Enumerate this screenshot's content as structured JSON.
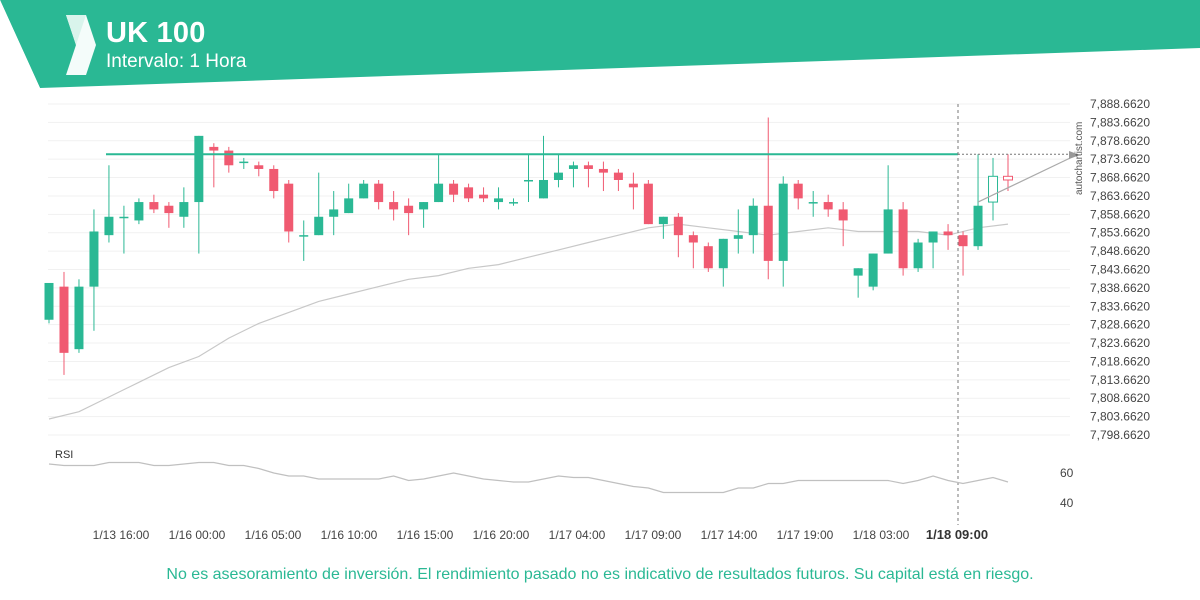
{
  "header": {
    "instrument": "UK 100",
    "interval": "Intervalo: 1 Hora"
  },
  "watermark": "autochartist.com",
  "footer": {
    "disclaimer": "No es asesoramiento de inversión. El rendimiento pasado no es indicativo de resultados futuros. Su capital está en riesgo."
  },
  "colors": {
    "brand": "#2ab894",
    "bullish": "#2ab894",
    "bearish": "#f05a71",
    "ma_line": "#c8c8c8",
    "resistance": "#2ab894"
  },
  "chart_data": {
    "type": "candlestick",
    "price_ticks": [
      "7,888.6620",
      "7,883.6620",
      "7,878.6620",
      "7,873.6620",
      "7,868.6620",
      "7,863.6620",
      "7,858.6620",
      "7,853.6620",
      "7,848.6620",
      "7,843.6620",
      "7,838.6620",
      "7,833.6620",
      "7,828.6620",
      "7,823.6620",
      "7,818.6620",
      "7,813.6620",
      "7,808.6620",
      "7,803.6620",
      "7,798.6620"
    ],
    "ylim": [
      7797,
      7891
    ],
    "time_labels": [
      "1/13 16:00",
      "1/16 00:00",
      "1/16 05:00",
      "1/16 10:00",
      "1/16 15:00",
      "1/16 20:00",
      "1/17 04:00",
      "1/17 09:00",
      "1/17 14:00",
      "1/17 19:00",
      "1/18 03:00",
      "1/18 09:00"
    ],
    "highlight_time": "1/18 09:00",
    "candles": [
      {
        "o": 7830,
        "h": 7840,
        "l": 7829,
        "c": 7840
      },
      {
        "o": 7839,
        "h": 7843,
        "l": 7815,
        "c": 7821
      },
      {
        "o": 7822,
        "h": 7841,
        "l": 7821,
        "c": 7839
      },
      {
        "o": 7839,
        "h": 7860,
        "l": 7827,
        "c": 7854
      },
      {
        "o": 7853,
        "h": 7872,
        "l": 7851,
        "c": 7858
      },
      {
        "o": 7858,
        "h": 7861,
        "l": 7848,
        "c": 7858
      },
      {
        "o": 7857,
        "h": 7863,
        "l": 7856,
        "c": 7862
      },
      {
        "o": 7862,
        "h": 7864,
        "l": 7859,
        "c": 7860
      },
      {
        "o": 7861,
        "h": 7862,
        "l": 7855,
        "c": 7859
      },
      {
        "o": 7858,
        "h": 7866,
        "l": 7855,
        "c": 7862
      },
      {
        "o": 7862,
        "h": 7880,
        "l": 7848,
        "c": 7880
      },
      {
        "o": 7877,
        "h": 7878,
        "l": 7866,
        "c": 7876
      },
      {
        "o": 7876,
        "h": 7877,
        "l": 7870,
        "c": 7872
      },
      {
        "o": 7873,
        "h": 7874,
        "l": 7871,
        "c": 7873
      },
      {
        "o": 7872,
        "h": 7873,
        "l": 7869,
        "c": 7871
      },
      {
        "o": 7871,
        "h": 7872,
        "l": 7863,
        "c": 7865
      },
      {
        "o": 7867,
        "h": 7868,
        "l": 7851,
        "c": 7854
      },
      {
        "o": 7853,
        "h": 7857,
        "l": 7846,
        "c": 7853
      },
      {
        "o": 7853,
        "h": 7870,
        "l": 7853,
        "c": 7858
      },
      {
        "o": 7858,
        "h": 7865,
        "l": 7853,
        "c": 7860
      },
      {
        "o": 7859,
        "h": 7867,
        "l": 7859,
        "c": 7863
      },
      {
        "o": 7863,
        "h": 7868,
        "l": 7863,
        "c": 7867
      },
      {
        "o": 7867,
        "h": 7868,
        "l": 7860,
        "c": 7862
      },
      {
        "o": 7862,
        "h": 7865,
        "l": 7857,
        "c": 7860
      },
      {
        "o": 7861,
        "h": 7863,
        "l": 7853,
        "c": 7859
      },
      {
        "o": 7860,
        "h": 7862,
        "l": 7855,
        "c": 7862
      },
      {
        "o": 7862,
        "h": 7875,
        "l": 7862,
        "c": 7867
      },
      {
        "o": 7867,
        "h": 7868,
        "l": 7862,
        "c": 7864
      },
      {
        "o": 7866,
        "h": 7867,
        "l": 7862,
        "c": 7863
      },
      {
        "o": 7864,
        "h": 7866,
        "l": 7862,
        "c": 7863
      },
      {
        "o": 7862,
        "h": 7866,
        "l": 7860,
        "c": 7863
      },
      {
        "o": 7862,
        "h": 7863,
        "l": 7861,
        "c": 7862
      },
      {
        "o": 7868,
        "h": 7875,
        "l": 7862,
        "c": 7868
      },
      {
        "o": 7863,
        "h": 7880,
        "l": 7863,
        "c": 7868
      },
      {
        "o": 7868,
        "h": 7875,
        "l": 7866,
        "c": 7870
      },
      {
        "o": 7871,
        "h": 7873,
        "l": 7866,
        "c": 7872
      },
      {
        "o": 7872,
        "h": 7873,
        "l": 7866,
        "c": 7871
      },
      {
        "o": 7871,
        "h": 7873,
        "l": 7865,
        "c": 7870
      },
      {
        "o": 7870,
        "h": 7871,
        "l": 7865,
        "c": 7868
      },
      {
        "o": 7867,
        "h": 7870,
        "l": 7860,
        "c": 7866
      },
      {
        "o": 7867,
        "h": 7868,
        "l": 7856,
        "c": 7856
      },
      {
        "o": 7856,
        "h": 7858,
        "l": 7852,
        "c": 7858
      },
      {
        "o": 7858,
        "h": 7859,
        "l": 7847,
        "c": 7853
      },
      {
        "o": 7853,
        "h": 7854,
        "l": 7844,
        "c": 7851
      },
      {
        "o": 7850,
        "h": 7851,
        "l": 7843,
        "c": 7844
      },
      {
        "o": 7844,
        "h": 7852,
        "l": 7839,
        "c": 7852
      },
      {
        "o": 7852,
        "h": 7860,
        "l": 7848,
        "c": 7853
      },
      {
        "o": 7853,
        "h": 7863,
        "l": 7848,
        "c": 7861
      },
      {
        "o": 7861,
        "h": 7885,
        "l": 7841,
        "c": 7846
      },
      {
        "o": 7846,
        "h": 7869,
        "l": 7839,
        "c": 7867
      },
      {
        "o": 7867,
        "h": 7868,
        "l": 7860,
        "c": 7863
      },
      {
        "o": 7862,
        "h": 7865,
        "l": 7858,
        "c": 7862
      },
      {
        "o": 7862,
        "h": 7864,
        "l": 7858,
        "c": 7860
      },
      {
        "o": 7860,
        "h": 7862,
        "l": 7850,
        "c": 7857
      },
      {
        "o": 7842,
        "h": 7844,
        "l": 7836,
        "c": 7844
      },
      {
        "o": 7839,
        "h": 7848,
        "l": 7838,
        "c": 7848
      },
      {
        "o": 7848,
        "h": 7872,
        "l": 7848,
        "c": 7860
      },
      {
        "o": 7860,
        "h": 7862,
        "l": 7842,
        "c": 7844
      },
      {
        "o": 7844,
        "h": 7852,
        "l": 7843,
        "c": 7851
      },
      {
        "o": 7851,
        "h": 7854,
        "l": 7844,
        "c": 7854
      },
      {
        "o": 7854,
        "h": 7856,
        "l": 7849,
        "c": 7853
      },
      {
        "o": 7853,
        "h": 7854,
        "l": 7842,
        "c": 7850
      },
      {
        "o": 7850,
        "h": 7875,
        "l": 7849,
        "c": 7861
      },
      {
        "o": 7862,
        "h": 7874,
        "l": 7857,
        "c": 7869
      },
      {
        "o": 7869,
        "h": 7875,
        "l": 7865,
        "c": 7868
      }
    ],
    "moving_average": [
      [
        0,
        7803
      ],
      [
        2,
        7805
      ],
      [
        4,
        7809
      ],
      [
        6,
        7813
      ],
      [
        8,
        7817
      ],
      [
        10,
        7820
      ],
      [
        12,
        7825
      ],
      [
        14,
        7829
      ],
      [
        16,
        7832
      ],
      [
        18,
        7835
      ],
      [
        20,
        7837
      ],
      [
        22,
        7839
      ],
      [
        24,
        7841
      ],
      [
        26,
        7842
      ],
      [
        28,
        7844
      ],
      [
        30,
        7845
      ],
      [
        32,
        7847
      ],
      [
        34,
        7849
      ],
      [
        36,
        7851
      ],
      [
        38,
        7853
      ],
      [
        40,
        7855
      ],
      [
        42,
        7856
      ],
      [
        44,
        7855
      ],
      [
        46,
        7854
      ],
      [
        48,
        7853
      ],
      [
        50,
        7854
      ],
      [
        52,
        7855
      ],
      [
        54,
        7854
      ],
      [
        56,
        7854
      ],
      [
        58,
        7854
      ],
      [
        60,
        7853
      ],
      [
        62,
        7855
      ],
      [
        64,
        7856
      ]
    ],
    "resistance_level": 7875,
    "triangle_line": [
      [
        62,
        7862
      ],
      [
        69,
        7875
      ]
    ],
    "rsi_label": "RSI",
    "rsi_ticks": [
      "60",
      "40"
    ],
    "rsi_ylim": [
      35,
      70
    ],
    "rsi": [
      [
        0,
        66
      ],
      [
        1,
        65
      ],
      [
        2,
        65
      ],
      [
        3,
        65
      ],
      [
        4,
        67
      ],
      [
        5,
        67
      ],
      [
        6,
        67
      ],
      [
        7,
        65
      ],
      [
        8,
        65
      ],
      [
        9,
        66
      ],
      [
        10,
        67
      ],
      [
        11,
        67
      ],
      [
        12,
        65
      ],
      [
        13,
        65
      ],
      [
        14,
        63
      ],
      [
        15,
        60
      ],
      [
        16,
        58
      ],
      [
        17,
        58
      ],
      [
        18,
        56
      ],
      [
        19,
        56
      ],
      [
        20,
        56
      ],
      [
        21,
        56
      ],
      [
        22,
        56
      ],
      [
        23,
        58
      ],
      [
        24,
        55
      ],
      [
        25,
        56
      ],
      [
        26,
        58
      ],
      [
        27,
        60
      ],
      [
        28,
        58
      ],
      [
        29,
        56
      ],
      [
        30,
        55
      ],
      [
        31,
        54
      ],
      [
        32,
        54
      ],
      [
        33,
        56
      ],
      [
        34,
        58
      ],
      [
        35,
        57
      ],
      [
        36,
        57
      ],
      [
        37,
        55
      ],
      [
        38,
        53
      ],
      [
        39,
        51
      ],
      [
        40,
        50
      ],
      [
        41,
        47
      ],
      [
        42,
        47
      ],
      [
        43,
        47
      ],
      [
        44,
        47
      ],
      [
        45,
        47
      ],
      [
        46,
        50
      ],
      [
        47,
        50
      ],
      [
        48,
        53
      ],
      [
        49,
        53
      ],
      [
        50,
        55
      ],
      [
        51,
        55
      ],
      [
        52,
        55
      ],
      [
        53,
        55
      ],
      [
        54,
        55
      ],
      [
        55,
        55
      ],
      [
        56,
        55
      ],
      [
        57,
        53
      ],
      [
        58,
        55
      ],
      [
        59,
        58
      ],
      [
        60,
        55
      ],
      [
        61,
        53
      ],
      [
        62,
        55
      ],
      [
        63,
        57
      ],
      [
        64,
        54
      ]
    ]
  }
}
